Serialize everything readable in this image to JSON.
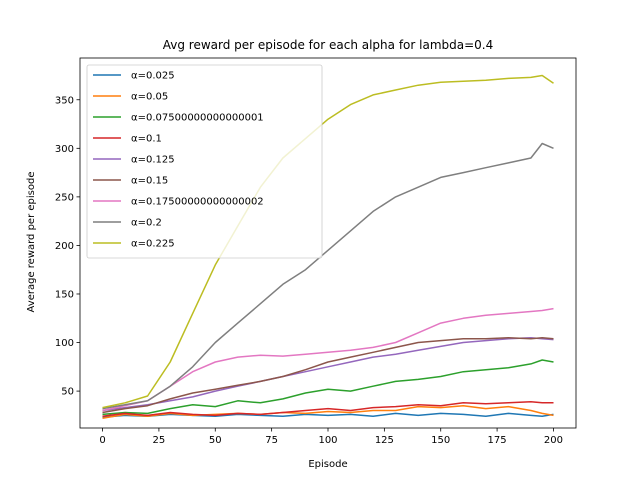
{
  "chart_data": {
    "type": "line",
    "title": "Avg reward per episode for each alpha for lambda=0.4",
    "xlabel": "Episode",
    "ylabel": "Average reward per episode",
    "xlim": [
      -10,
      210
    ],
    "ylim": [
      12,
      393
    ],
    "xticks": [
      0,
      25,
      50,
      75,
      100,
      125,
      150,
      175,
      200
    ],
    "yticks": [
      50,
      100,
      150,
      200,
      250,
      300,
      350
    ],
    "grid": false,
    "legend_position": "upper-left",
    "series": [
      {
        "name": "α=0.025",
        "color": "#1f77b4",
        "x": [
          0,
          10,
          20,
          30,
          40,
          50,
          60,
          70,
          80,
          90,
          100,
          110,
          120,
          130,
          140,
          150,
          160,
          170,
          180,
          190,
          195,
          200
        ],
        "values": [
          23,
          25,
          24,
          26,
          25,
          24,
          26,
          25,
          24,
          26,
          25,
          26,
          24,
          27,
          25,
          27,
          26,
          24,
          27,
          25,
          24,
          26
        ]
      },
      {
        "name": "α=0.05",
        "color": "#ff7f0e",
        "x": [
          0,
          10,
          20,
          30,
          40,
          50,
          60,
          70,
          80,
          90,
          100,
          110,
          120,
          130,
          140,
          150,
          160,
          170,
          180,
          190,
          195,
          200
        ],
        "values": [
          22,
          26,
          24,
          27,
          25,
          26,
          27,
          26,
          28,
          27,
          29,
          28,
          30,
          30,
          34,
          33,
          35,
          32,
          34,
          30,
          27,
          25
        ]
      },
      {
        "name": "α=0.07500000000000001",
        "color": "#2ca02c",
        "x": [
          0,
          10,
          20,
          30,
          40,
          50,
          60,
          70,
          80,
          90,
          100,
          110,
          120,
          130,
          140,
          150,
          160,
          170,
          180,
          190,
          195,
          200
        ],
        "values": [
          26,
          28,
          27,
          32,
          36,
          34,
          40,
          38,
          42,
          48,
          52,
          50,
          55,
          60,
          62,
          65,
          70,
          72,
          74,
          78,
          82,
          80
        ]
      },
      {
        "name": "α=0.1",
        "color": "#d62728",
        "x": [
          0,
          10,
          20,
          30,
          40,
          50,
          60,
          70,
          80,
          90,
          100,
          110,
          120,
          130,
          140,
          150,
          160,
          170,
          180,
          190,
          195,
          200
        ],
        "values": [
          24,
          27,
          25,
          28,
          26,
          25,
          27,
          26,
          28,
          30,
          32,
          30,
          33,
          34,
          36,
          35,
          38,
          37,
          38,
          39,
          38,
          38
        ]
      },
      {
        "name": "α=0.125",
        "color": "#9467bd",
        "x": [
          0,
          10,
          20,
          30,
          40,
          50,
          60,
          70,
          80,
          90,
          100,
          110,
          120,
          130,
          140,
          150,
          160,
          170,
          180,
          190,
          195,
          200
        ],
        "values": [
          30,
          33,
          36,
          40,
          44,
          50,
          55,
          60,
          65,
          70,
          75,
          80,
          85,
          88,
          92,
          96,
          100,
          102,
          104,
          105,
          104,
          103
        ]
      },
      {
        "name": "α=0.15",
        "color": "#8c564b",
        "x": [
          0,
          10,
          20,
          30,
          40,
          50,
          60,
          70,
          80,
          90,
          100,
          110,
          120,
          130,
          140,
          150,
          160,
          170,
          180,
          190,
          195,
          200
        ],
        "values": [
          28,
          32,
          35,
          42,
          48,
          52,
          56,
          60,
          65,
          72,
          80,
          85,
          90,
          95,
          100,
          102,
          104,
          104,
          105,
          104,
          105,
          104
        ]
      },
      {
        "name": "α=0.17500000000000002",
        "color": "#e377c2",
        "x": [
          0,
          10,
          20,
          30,
          40,
          50,
          60,
          70,
          80,
          90,
          100,
          110,
          120,
          130,
          140,
          150,
          160,
          170,
          180,
          190,
          195,
          200
        ],
        "values": [
          30,
          35,
          40,
          55,
          70,
          80,
          85,
          87,
          86,
          88,
          90,
          92,
          95,
          100,
          110,
          120,
          125,
          128,
          130,
          132,
          133,
          135
        ]
      },
      {
        "name": "α=0.2",
        "color": "#7f7f7f",
        "x": [
          0,
          10,
          20,
          30,
          40,
          50,
          60,
          70,
          80,
          90,
          100,
          110,
          120,
          130,
          140,
          150,
          160,
          170,
          180,
          190,
          195,
          200
        ],
        "values": [
          32,
          36,
          40,
          55,
          75,
          100,
          120,
          140,
          160,
          175,
          195,
          215,
          235,
          250,
          260,
          270,
          275,
          280,
          285,
          290,
          305,
          300
        ]
      },
      {
        "name": "α=0.225",
        "color": "#bcbd22",
        "x": [
          0,
          10,
          20,
          30,
          40,
          50,
          60,
          70,
          80,
          90,
          100,
          110,
          120,
          130,
          140,
          150,
          160,
          170,
          180,
          190,
          195,
          200
        ],
        "values": [
          33,
          38,
          45,
          80,
          130,
          180,
          220,
          260,
          290,
          310,
          330,
          345,
          355,
          360,
          365,
          368,
          369,
          370,
          372,
          373,
          375,
          367
        ]
      }
    ]
  }
}
